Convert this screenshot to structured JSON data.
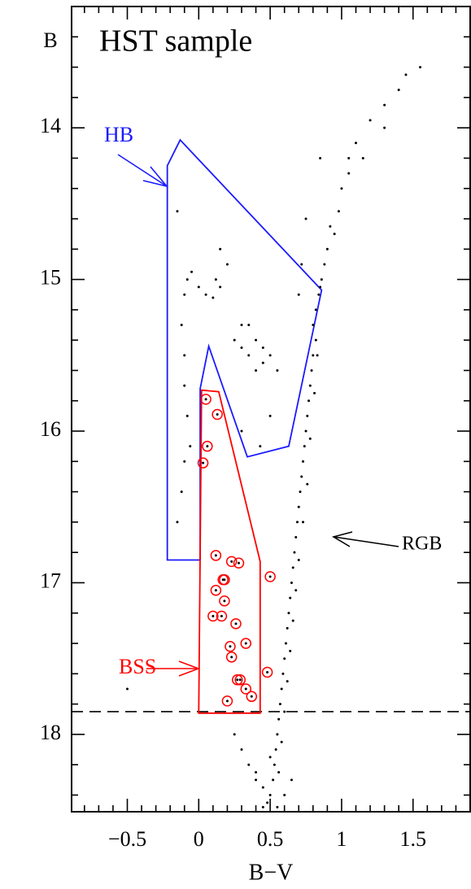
{
  "chart_data": {
    "type": "scatter",
    "title": "HST sample",
    "xlabel": "B−V",
    "ylabel": "B",
    "xlim": [
      -0.89,
      1.9
    ],
    "ylim": [
      18.51,
      13.2
    ],
    "xticks": [
      {
        "value": -0.5,
        "label": "−0.5"
      },
      0,
      0.5,
      1,
      1.5
    ],
    "yticks": [
      14,
      15,
      16,
      17,
      18
    ],
    "xminorticks": [
      -0.8,
      -0.7,
      -0.6,
      -0.4,
      -0.3,
      -0.2,
      -0.1,
      0.1,
      0.2,
      0.3,
      0.4,
      0.6,
      0.7,
      0.8,
      0.9,
      1.1,
      1.2,
      1.3,
      1.4,
      1.6,
      1.7,
      1.8
    ],
    "yminorticks": [
      13.4,
      13.6,
      13.8,
      14.2,
      14.4,
      14.6,
      14.8,
      15.2,
      15.4,
      15.6,
      15.8,
      16.2,
      16.4,
      16.6,
      16.8,
      17.2,
      17.4,
      17.6,
      17.8,
      18.2,
      18.4
    ],
    "hline": 17.85,
    "series": [
      {
        "color": "#000000",
        "x": [
          1.55,
          1.45,
          1.4,
          1.3,
          1.2,
          1.1,
          1.05,
          1.0,
          0.98,
          0.95,
          0.9,
          0.88,
          0.86,
          0.84,
          0.82,
          0.8,
          0.82,
          0.8,
          0.79,
          0.78,
          0.77,
          0.76,
          0.75,
          0.74,
          0.73,
          0.72,
          0.71,
          0.7,
          0.69,
          0.68,
          0.67,
          0.66,
          0.65,
          0.64,
          0.63,
          0.62,
          0.61,
          0.6,
          0.59,
          0.58,
          0.57,
          0.56,
          0.55,
          0.54,
          0.53,
          0.52,
          0.5,
          0.48,
          1.3,
          1.15,
          0.92,
          0.85,
          0.83,
          0.81,
          0.78,
          0.76,
          0.73,
          0.7,
          0.68,
          0.66,
          0.64,
          0.62,
          0.6,
          0.58,
          0.56,
          0.6,
          0.45,
          0.4,
          0.65,
          0.55,
          0.45,
          0.85,
          0.75,
          0.72,
          0.7,
          -0.12,
          -0.1,
          -0.08,
          -0.05,
          0.0,
          0.05,
          0.1,
          0.15,
          0.12,
          -0.1,
          -0.1,
          -0.08,
          -0.06,
          -0.1,
          -0.12,
          -0.15,
          0.2,
          0.15,
          0.25,
          0.3,
          0.35,
          0.4,
          0.45,
          0.5,
          0.55,
          0.35,
          0.45,
          0.4,
          0.3,
          -0.15,
          0.5,
          0.43,
          0.3,
          1.05,
          -0.5,
          0.25,
          0.3,
          0.35,
          0.4,
          0.5
        ],
        "y": [
          13.6,
          13.65,
          13.75,
          13.85,
          13.95,
          14.1,
          14.3,
          14.4,
          14.55,
          14.7,
          14.8,
          14.9,
          15.0,
          15.1,
          15.2,
          15.3,
          15.4,
          15.5,
          15.6,
          15.7,
          15.8,
          15.9,
          16.0,
          16.1,
          16.2,
          16.3,
          16.4,
          16.5,
          16.6,
          16.7,
          16.8,
          16.9,
          17.0,
          17.1,
          17.2,
          17.3,
          17.4,
          17.5,
          17.6,
          17.7,
          17.8,
          17.9,
          18.0,
          18.1,
          18.2,
          18.3,
          18.4,
          18.45,
          14.0,
          14.2,
          14.65,
          15.05,
          15.5,
          15.75,
          16.05,
          16.35,
          16.6,
          16.85,
          17.05,
          17.25,
          17.45,
          17.65,
          17.85,
          18.05,
          18.25,
          18.4,
          18.35,
          18.3,
          18.3,
          18.48,
          18.48,
          14.2,
          14.6,
          14.9,
          15.1,
          15.3,
          15.1,
          15.0,
          14.95,
          15.05,
          15.1,
          15.12,
          15.05,
          15.0,
          15.5,
          15.7,
          15.9,
          16.1,
          16.2,
          16.4,
          16.6,
          14.9,
          14.8,
          15.4,
          15.45,
          15.5,
          15.4,
          15.45,
          15.5,
          15.6,
          15.3,
          15.55,
          15.6,
          15.3,
          14.55,
          15.9,
          16.1,
          16.0,
          14.2,
          17.7,
          18.0,
          18.1,
          18.2,
          18.25,
          18.15
        ]
      },
      {
        "color": "#ff0000",
        "x": [
          0.05,
          0.13,
          0.06,
          0.03,
          0.12,
          0.23,
          0.28,
          0.5,
          0.17,
          0.18,
          0.12,
          0.18,
          0.1,
          0.16,
          0.26,
          0.33,
          0.22,
          0.23,
          0.48,
          0.29,
          0.27,
          0.33,
          0.37,
          0.2
        ],
        "y": [
          15.79,
          15.89,
          16.1,
          16.21,
          16.82,
          16.86,
          16.87,
          16.96,
          16.98,
          16.98,
          17.05,
          17.12,
          17.22,
          17.22,
          17.27,
          17.4,
          17.42,
          17.49,
          17.59,
          17.64,
          17.64,
          17.7,
          17.75,
          17.78
        ]
      }
    ],
    "regions": [
      {
        "label": "HB",
        "color": "#1a1aff",
        "x": [
          -0.22,
          -0.13,
          0.86,
          0.63,
          0.34,
          0.07,
          0.01,
          0.01,
          -0.22
        ],
        "y": [
          14.25,
          14.08,
          15.07,
          16.1,
          16.17,
          15.44,
          15.72,
          16.85,
          16.85
        ]
      },
      {
        "label": "BSS",
        "color": "#ff0000",
        "x": [
          0.02,
          0.14,
          0.43,
          0.43,
          0.0
        ],
        "y": [
          15.73,
          15.74,
          16.86,
          17.86,
          17.86
        ]
      }
    ],
    "annotations": [
      {
        "text": "RGB",
        "color": "#000000"
      }
    ]
  }
}
